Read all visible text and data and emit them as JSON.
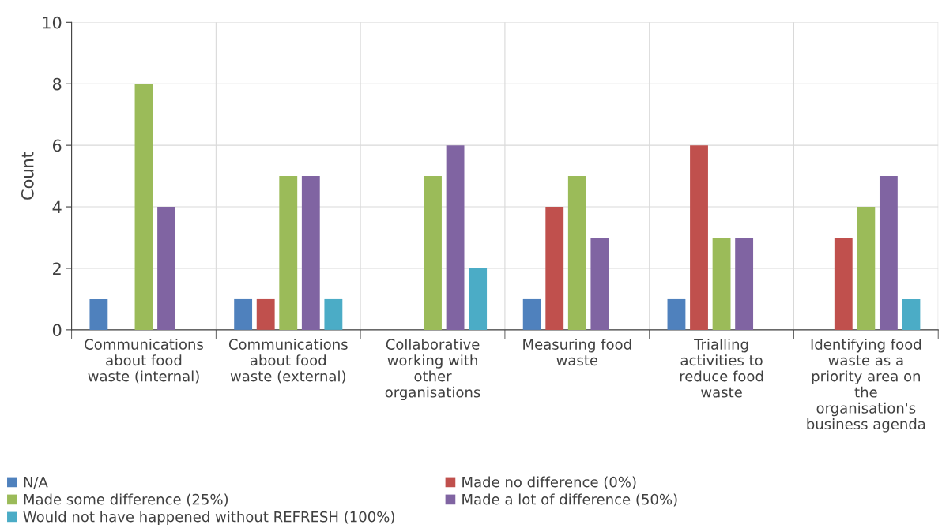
{
  "chart_data": {
    "type": "bar",
    "ylabel": "Count",
    "categories": [
      "Communications\nabout food\nwaste (internal)",
      "Communications\nabout food\nwaste (external)",
      "Collaborative\nworking with\nother\norganisations",
      "Measuring food\nwaste",
      "Trialling\nactivities to\nreduce food\nwaste",
      "Identifying food\nwaste as a\npriority area on\nthe\norganisation's\nbusiness agenda"
    ],
    "series": [
      {
        "name": "N/A",
        "color": "#4f81bd",
        "values": [
          1,
          1,
          0,
          1,
          1,
          0
        ]
      },
      {
        "name": "Made no difference (0%)",
        "color": "#c0504d",
        "values": [
          0,
          1,
          0,
          4,
          6,
          3
        ]
      },
      {
        "name": "Made some difference (25%)",
        "color": "#9bbb59",
        "values": [
          8,
          5,
          5,
          5,
          3,
          4
        ]
      },
      {
        "name": "Made a lot of difference (50%)",
        "color": "#8064a2",
        "values": [
          4,
          5,
          6,
          3,
          3,
          5
        ]
      },
      {
        "name": "Would not have happened without REFRESH (100%)",
        "color": "#4bacc6",
        "values": [
          0,
          1,
          2,
          0,
          0,
          1
        ]
      }
    ],
    "ylim": [
      0,
      10
    ],
    "yticks": [
      0,
      2,
      4,
      6,
      8,
      10
    ],
    "grid": true,
    "legend": "bottom"
  }
}
